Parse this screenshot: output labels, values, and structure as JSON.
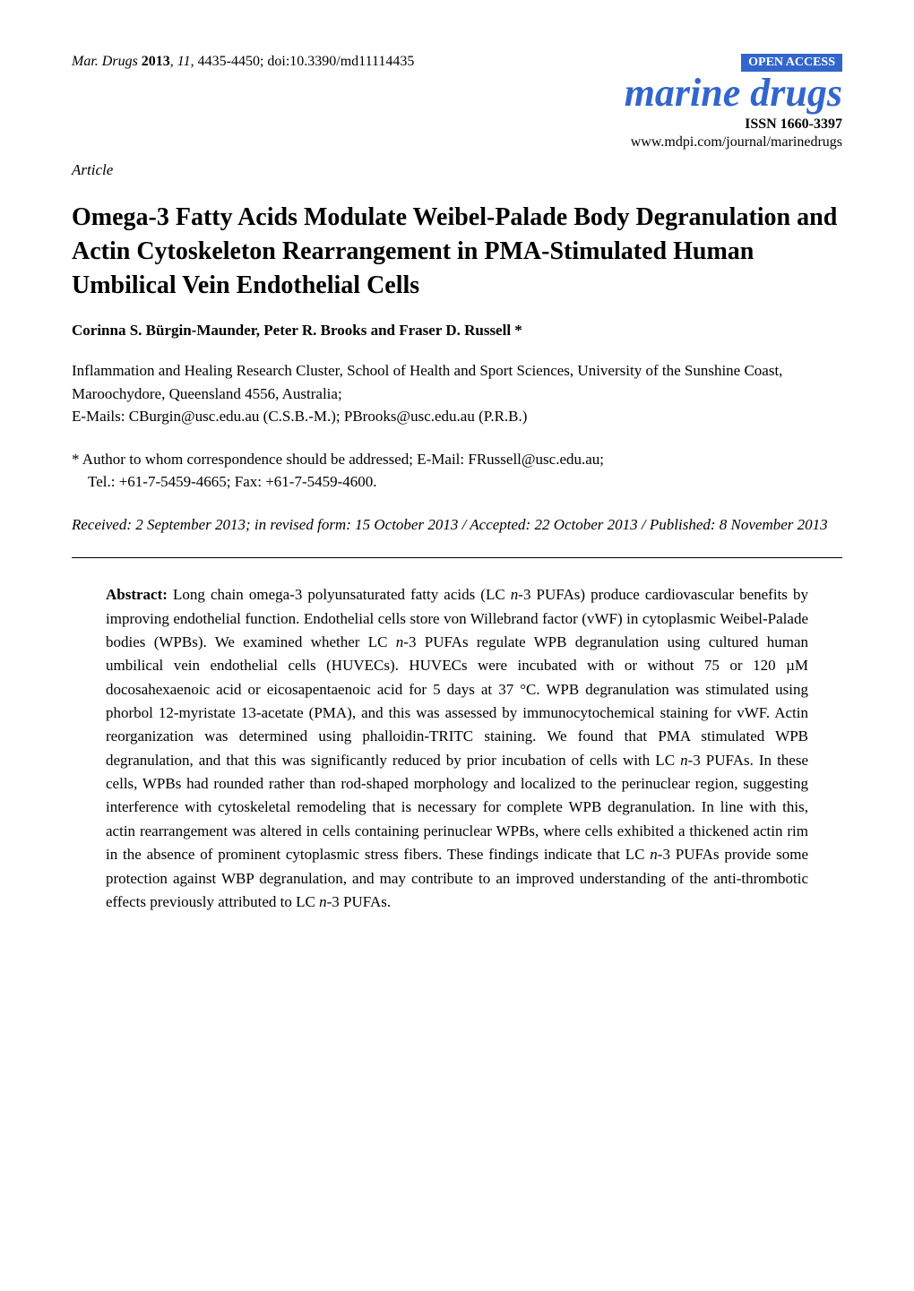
{
  "header": {
    "journal_ref_prefix": "Mar. Drugs",
    "year": "2013",
    "volume": "11",
    "pages": "4435-4450",
    "doi": "doi:10.3390/md11114435",
    "open_access": "OPEN ACCESS",
    "journal_logo": "marine drugs",
    "issn": "ISSN 1660-3397",
    "url": "www.mdpi.com/journal/marinedrugs"
  },
  "article_type": "Article",
  "title": "Omega-3 Fatty Acids Modulate Weibel-Palade Body Degranulation and Actin Cytoskeleton Rearrangement in PMA-Stimulated Human Umbilical Vein Endothelial Cells",
  "authors": "Corinna S. Bürgin-Maunder, Peter R. Brooks and Fraser D. Russell *",
  "affiliation": "Inflammation and Healing Research Cluster, School of Health and Sport Sciences, University of the Sunshine Coast, Maroochydore, Queensland 4556, Australia;",
  "affiliation_emails": "E-Mails: CBurgin@usc.edu.au (C.S.B.-M.); PBrooks@usc.edu.au (P.R.B.)",
  "corresponding_line1": "*  Author to whom correspondence should be addressed; E-Mail: FRussell@usc.edu.au;",
  "corresponding_line2": "Tel.: +61-7-5459-4665; Fax: +61-7-5459-4600.",
  "dates": "Received: 2 September 2013; in revised form: 15 October 2013 / Accepted: 22 October 2013 / Published: 8 November 2013",
  "abstract": {
    "heading": "Abstract:",
    "body_html": "Long chain omega-3 polyunsaturated fatty acids (LC <span class=\"italic\">n</span>-3 PUFAs) produce cardiovascular benefits by improving endothelial function. Endothelial cells store von Willebrand factor (vWF) in cytoplasmic Weibel-Palade bodies (WPBs). We examined whether LC <span class=\"italic\">n</span>-3 PUFAs regulate WPB degranulation using cultured human umbilical vein endothelial cells (HUVECs). HUVECs were incubated with or without 75 or 120 µM docosahexaenoic acid or eicosapentaenoic acid for 5 days at 37 °C. WPB degranulation was stimulated using phorbol 12-myristate 13-acetate (PMA), and this was assessed by immunocytochemical staining for vWF. Actin reorganization was determined using phalloidin-TRITC staining. We found that PMA stimulated WPB degranulation, and that this was significantly reduced by prior incubation of cells with LC <span class=\"italic\">n</span>-3 PUFAs. In these cells, WPBs had rounded rather than rod-shaped morphology and localized to the perinuclear region, suggesting interference with cytoskeletal remodeling that is necessary for complete WPB degranulation. In line with this, actin rearrangement was altered in cells containing perinuclear WPBs, where cells exhibited a thickened actin rim in the absence of prominent cytoplasmic stress fibers. These findings indicate that LC <span class=\"italic\">n</span>-3 PUFAs provide some protection against WBP degranulation, and may contribute to an improved understanding of the anti-thrombotic effects previously attributed to LC <span class=\"italic\">n</span>-3 PUFAs."
  },
  "colors": {
    "brand": "#3366cc",
    "text": "#000000",
    "background": "#ffffff"
  }
}
